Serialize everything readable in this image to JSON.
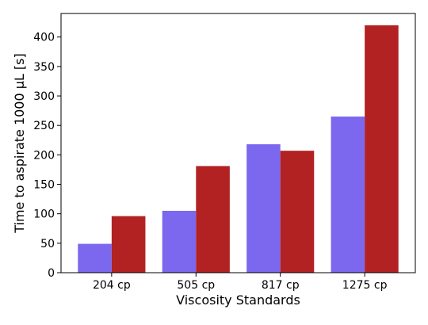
{
  "chart_data": {
    "type": "bar",
    "title": "",
    "xlabel": "Viscosity Standards",
    "ylabel": "Time to aspirate 1000 µL [s]",
    "categories": [
      "204 cp",
      "505 cp",
      "817 cp",
      "1275 cp"
    ],
    "series": [
      {
        "color": "#7b68ee",
        "values": [
          49,
          105,
          218,
          265
        ]
      },
      {
        "color": "#b22222",
        "values": [
          96,
          181,
          207,
          420
        ]
      }
    ],
    "ylim": [
      0,
      440
    ],
    "yticks": [
      0,
      50,
      100,
      150,
      200,
      250,
      300,
      350,
      400
    ],
    "grid": false
  }
}
